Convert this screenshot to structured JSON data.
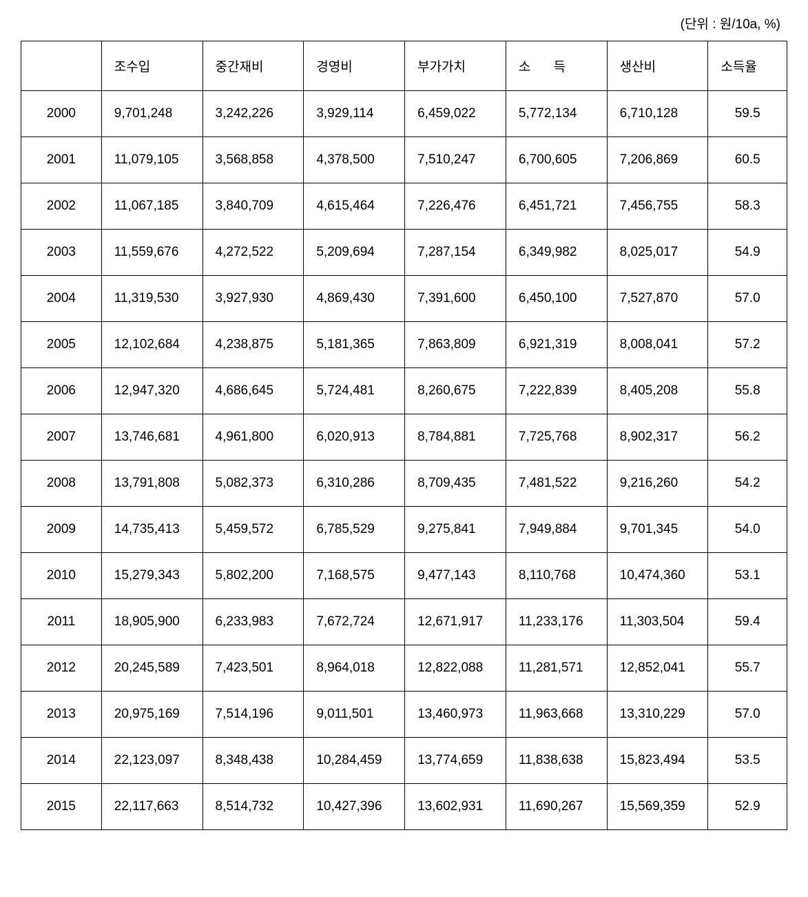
{
  "unit_label": "(단위 : 원/10a, %)",
  "table": {
    "type": "table",
    "background_color": "#ffffff",
    "border_color": "#000000",
    "text_color": "#000000",
    "font_size_pt": 14,
    "headers": {
      "year": "",
      "gross_income": "조수입",
      "intermediate_cost": "중간재비",
      "operating_cost": "경영비",
      "value_added": "부가가치",
      "income": "소 득",
      "production_cost": "생산비",
      "income_rate": "소득율"
    },
    "column_widths_pct": [
      10.5,
      13.2,
      13.2,
      13.2,
      13.2,
      13.2,
      13.2,
      10.3
    ],
    "column_alignment": [
      "center",
      "left",
      "left",
      "left",
      "left",
      "left",
      "left",
      "center"
    ],
    "rows": [
      {
        "year": "2000",
        "gross_income": "9,701,248",
        "intermediate_cost": "3,242,226",
        "operating_cost": "3,929,114",
        "value_added": "6,459,022",
        "income": "5,772,134",
        "production_cost": "6,710,128",
        "income_rate": "59.5"
      },
      {
        "year": "2001",
        "gross_income": "11,079,105",
        "intermediate_cost": "3,568,858",
        "operating_cost": "4,378,500",
        "value_added": "7,510,247",
        "income": "6,700,605",
        "production_cost": "7,206,869",
        "income_rate": "60.5"
      },
      {
        "year": "2002",
        "gross_income": "11,067,185",
        "intermediate_cost": "3,840,709",
        "operating_cost": "4,615,464",
        "value_added": "7,226,476",
        "income": "6,451,721",
        "production_cost": "7,456,755",
        "income_rate": "58.3"
      },
      {
        "year": "2003",
        "gross_income": "11,559,676",
        "intermediate_cost": "4,272,522",
        "operating_cost": "5,209,694",
        "value_added": "7,287,154",
        "income": "6,349,982",
        "production_cost": "8,025,017",
        "income_rate": "54.9"
      },
      {
        "year": "2004",
        "gross_income": "11,319,530",
        "intermediate_cost": "3,927,930",
        "operating_cost": "4,869,430",
        "value_added": "7,391,600",
        "income": "6,450,100",
        "production_cost": "7,527,870",
        "income_rate": "57.0"
      },
      {
        "year": "2005",
        "gross_income": "12,102,684",
        "intermediate_cost": "4,238,875",
        "operating_cost": "5,181,365",
        "value_added": "7,863,809",
        "income": "6,921,319",
        "production_cost": "8,008,041",
        "income_rate": "57.2"
      },
      {
        "year": "2006",
        "gross_income": "12,947,320",
        "intermediate_cost": "4,686,645",
        "operating_cost": "5,724,481",
        "value_added": "8,260,675",
        "income": "7,222,839",
        "production_cost": "8,405,208",
        "income_rate": "55.8"
      },
      {
        "year": "2007",
        "gross_income": "13,746,681",
        "intermediate_cost": "4,961,800",
        "operating_cost": "6,020,913",
        "value_added": "8,784,881",
        "income": "7,725,768",
        "production_cost": "8,902,317",
        "income_rate": "56.2"
      },
      {
        "year": "2008",
        "gross_income": "13,791,808",
        "intermediate_cost": "5,082,373",
        "operating_cost": "6,310,286",
        "value_added": "8,709,435",
        "income": "7,481,522",
        "production_cost": "9,216,260",
        "income_rate": "54.2"
      },
      {
        "year": "2009",
        "gross_income": "14,735,413",
        "intermediate_cost": "5,459,572",
        "operating_cost": "6,785,529",
        "value_added": "9,275,841",
        "income": "7,949,884",
        "production_cost": "9,701,345",
        "income_rate": "54.0"
      },
      {
        "year": "2010",
        "gross_income": "15,279,343",
        "intermediate_cost": "5,802,200",
        "operating_cost": "7,168,575",
        "value_added": "9,477,143",
        "income": "8,110,768",
        "production_cost": "10,474,360",
        "income_rate": "53.1"
      },
      {
        "year": "2011",
        "gross_income": "18,905,900",
        "intermediate_cost": "6,233,983",
        "operating_cost": "7,672,724",
        "value_added": "12,671,917",
        "income": "11,233,176",
        "production_cost": "11,303,504",
        "income_rate": "59.4"
      },
      {
        "year": "2012",
        "gross_income": "20,245,589",
        "intermediate_cost": "7,423,501",
        "operating_cost": "8,964,018",
        "value_added": "12,822,088",
        "income": "11,281,571",
        "production_cost": "12,852,041",
        "income_rate": "55.7"
      },
      {
        "year": "2013",
        "gross_income": "20,975,169",
        "intermediate_cost": "7,514,196",
        "operating_cost": "9,011,501",
        "value_added": "13,460,973",
        "income": "11,963,668",
        "production_cost": "13,310,229",
        "income_rate": "57.0"
      },
      {
        "year": "2014",
        "gross_income": "22,123,097",
        "intermediate_cost": "8,348,438",
        "operating_cost": "10,284,459",
        "value_added": "13,774,659",
        "income": "11,838,638",
        "production_cost": "15,823,494",
        "income_rate": "53.5"
      },
      {
        "year": "2015",
        "gross_income": "22,117,663",
        "intermediate_cost": "8,514,732",
        "operating_cost": "10,427,396",
        "value_added": "13,602,931",
        "income": "11,690,267",
        "production_cost": "15,569,359",
        "income_rate": "52.9"
      }
    ]
  }
}
